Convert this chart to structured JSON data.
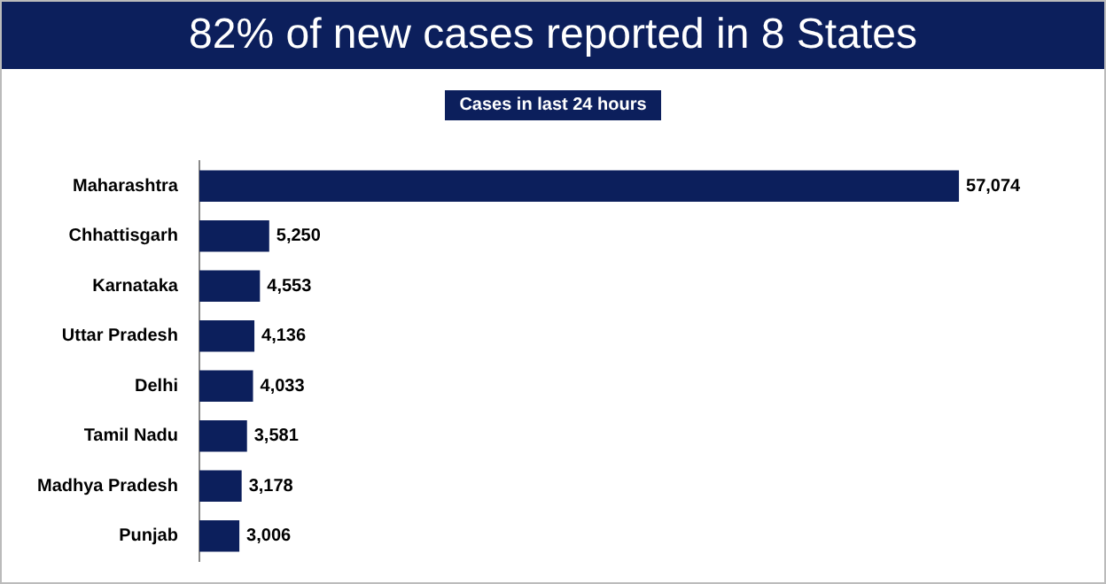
{
  "chart_data": {
    "type": "bar",
    "orientation": "horizontal",
    "title": "82% of new cases reported in 8 States",
    "subtitle": "Cases in last 24 hours",
    "categories": [
      "Maharashtra",
      "Chhattisgarh",
      "Karnataka",
      "Uttar Pradesh",
      "Delhi",
      "Tamil Nadu",
      "Madhya Pradesh",
      "Punjab"
    ],
    "values": [
      57074,
      5250,
      4553,
      4136,
      4033,
      3581,
      3178,
      3006
    ],
    "value_labels": [
      "57,074",
      "5,250",
      "4,553",
      "4,136",
      "4,033",
      "3,581",
      "3,178",
      "3,006"
    ],
    "color": "#0c1f5c",
    "tick_labels": "y",
    "grid": false,
    "legend": false
  }
}
